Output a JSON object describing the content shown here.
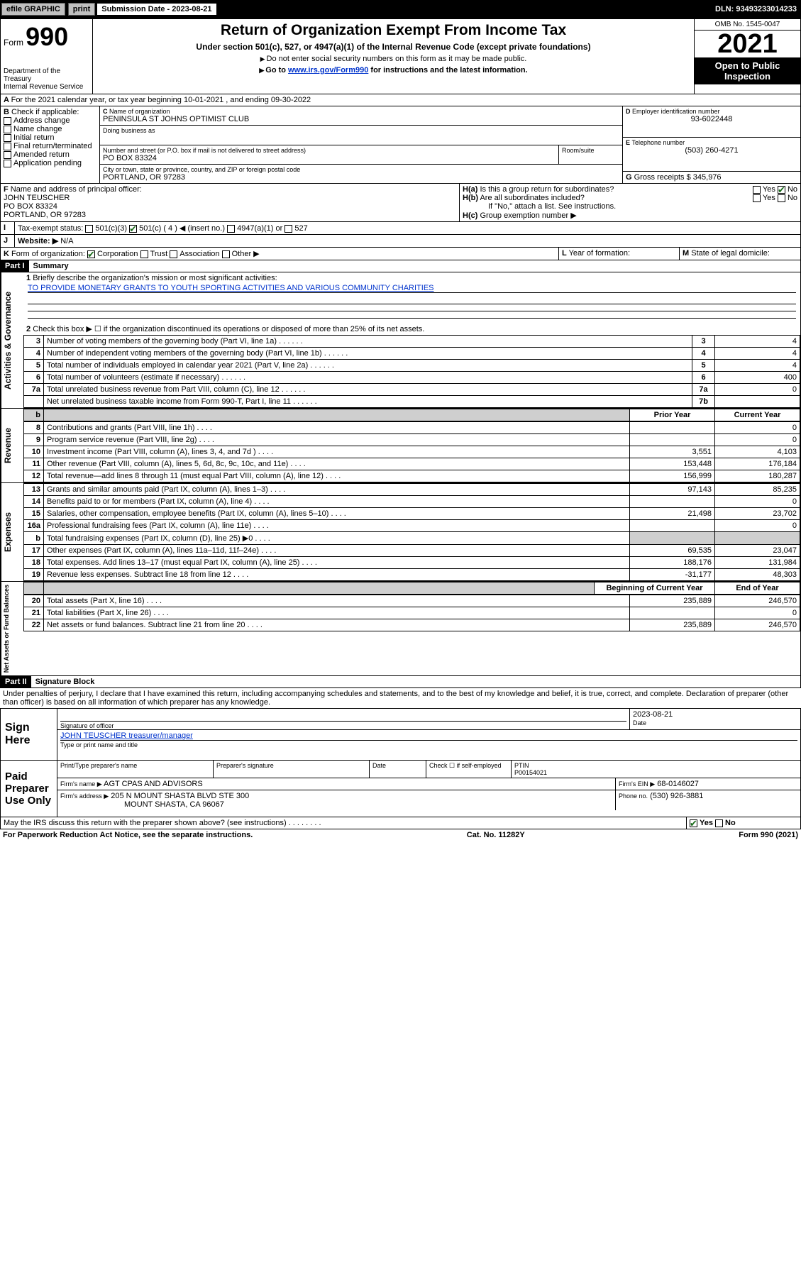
{
  "topbar": {
    "efile": "efile GRAPHIC",
    "print": "print",
    "sub_label": "Submission Date - 2023-08-21",
    "dln": "DLN: 93493233014233"
  },
  "hdr": {
    "form_small": "Form",
    "form_no": "990",
    "dept": "Department of the Treasury",
    "irs": "Internal Revenue Service",
    "title": "Return of Organization Exempt From Income Tax",
    "sub": "Under section 501(c), 527, or 4947(a)(1) of the Internal Revenue Code (except private foundations)",
    "note1": "Do not enter social security numbers on this form as it may be made public.",
    "note2_pre": "Go to ",
    "note2_link": "www.irs.gov/Form990",
    "note2_post": " for instructions and the latest information.",
    "omb": "OMB No. 1545-0047",
    "year": "2021",
    "inspect": "Open to Public Inspection"
  },
  "A": {
    "text": "For the 2021 calendar year, or tax year beginning 10-01-2021   , and ending 09-30-2022"
  },
  "B": {
    "label": "Check if applicable:",
    "items": [
      "Address change",
      "Name change",
      "Initial return",
      "Final return/terminated",
      "Amended return",
      "Application pending"
    ]
  },
  "C": {
    "name_label": "Name of organization",
    "name": "PENINSULA ST JOHNS OPTIMIST CLUB",
    "dba_label": "Doing business as",
    "addr_label": "Number and street (or P.O. box if mail is not delivered to street address)",
    "addr": "PO BOX 83324",
    "room_label": "Room/suite",
    "city_label": "City or town, state or province, country, and ZIP or foreign postal code",
    "city": "PORTLAND, OR  97283"
  },
  "D": {
    "label": "Employer identification number",
    "val": "93-6022448"
  },
  "E": {
    "label": "Telephone number",
    "val": "(503) 260-4271"
  },
  "G": {
    "label": "Gross receipts $",
    "val": "345,976"
  },
  "F": {
    "label": "Name and address of principal officer:",
    "name": "JOHN TEUSCHER",
    "addr1": "PO BOX 83324",
    "addr2": "PORTLAND, OR  97283"
  },
  "H": {
    "a": "Is this a group return for subordinates?",
    "b": "Are all subordinates included?",
    "b2": "If \"No,\" attach a list. See instructions.",
    "c": "Group exemption number ▶",
    "yes": "Yes",
    "no": "No"
  },
  "I": {
    "label": "Tax-exempt status:",
    "opts": [
      "501(c)(3)",
      "501(c) ( 4 ) ◀ (insert no.)",
      "4947(a)(1) or",
      "527"
    ]
  },
  "J": {
    "label": "Website: ▶",
    "val": "N/A"
  },
  "K": {
    "label": "Form of organization:",
    "opts": [
      "Corporation",
      "Trust",
      "Association",
      "Other ▶"
    ]
  },
  "L": {
    "label": "Year of formation:"
  },
  "M": {
    "label": "State of legal domicile:"
  },
  "part1": {
    "hdr": "Part I",
    "title": "Summary",
    "l1": "Briefly describe the organization's mission or most significant activities:",
    "l1v": "TO PROVIDE MONETARY GRANTS TO YOUTH SPORTING ACTIVITIES AND VARIOUS COMMUNITY CHARITIES",
    "l2": "Check this box ▶ ☐ if the organization discontinued its operations or disposed of more than 25% of its net assets.",
    "rows_gov": [
      {
        "n": "3",
        "t": "Number of voting members of the governing body (Part VI, line 1a)",
        "ln": "3",
        "v": "4"
      },
      {
        "n": "4",
        "t": "Number of independent voting members of the governing body (Part VI, line 1b)",
        "ln": "4",
        "v": "4"
      },
      {
        "n": "5",
        "t": "Total number of individuals employed in calendar year 2021 (Part V, line 2a)",
        "ln": "5",
        "v": "4"
      },
      {
        "n": "6",
        "t": "Total number of volunteers (estimate if necessary)",
        "ln": "6",
        "v": "400"
      },
      {
        "n": "7a",
        "t": "Total unrelated business revenue from Part VIII, column (C), line 12",
        "ln": "7a",
        "v": "0"
      },
      {
        "n": "",
        "t": "Net unrelated business taxable income from Form 990-T, Part I, line 11",
        "ln": "7b",
        "v": ""
      }
    ],
    "col_prior": "Prior Year",
    "col_curr": "Current Year",
    "rows_rev": [
      {
        "n": "8",
        "t": "Contributions and grants (Part VIII, line 1h)",
        "p": "",
        "c": "0"
      },
      {
        "n": "9",
        "t": "Program service revenue (Part VIII, line 2g)",
        "p": "",
        "c": "0"
      },
      {
        "n": "10",
        "t": "Investment income (Part VIII, column (A), lines 3, 4, and 7d )",
        "p": "3,551",
        "c": "4,103"
      },
      {
        "n": "11",
        "t": "Other revenue (Part VIII, column (A), lines 5, 6d, 8c, 9c, 10c, and 11e)",
        "p": "153,448",
        "c": "176,184"
      },
      {
        "n": "12",
        "t": "Total revenue—add lines 8 through 11 (must equal Part VIII, column (A), line 12)",
        "p": "156,999",
        "c": "180,287"
      }
    ],
    "rows_exp": [
      {
        "n": "13",
        "t": "Grants and similar amounts paid (Part IX, column (A), lines 1–3)",
        "p": "97,143",
        "c": "85,235"
      },
      {
        "n": "14",
        "t": "Benefits paid to or for members (Part IX, column (A), line 4)",
        "p": "",
        "c": "0"
      },
      {
        "n": "15",
        "t": "Salaries, other compensation, employee benefits (Part IX, column (A), lines 5–10)",
        "p": "21,498",
        "c": "23,702"
      },
      {
        "n": "16a",
        "t": "Professional fundraising fees (Part IX, column (A), line 11e)",
        "p": "",
        "c": "0"
      },
      {
        "n": "b",
        "t": "Total fundraising expenses (Part IX, column (D), line 25) ▶0",
        "p": "—shade—",
        "c": "—shade—"
      },
      {
        "n": "17",
        "t": "Other expenses (Part IX, column (A), lines 11a–11d, 11f–24e)",
        "p": "69,535",
        "c": "23,047"
      },
      {
        "n": "18",
        "t": "Total expenses. Add lines 13–17 (must equal Part IX, column (A), line 25)",
        "p": "188,176",
        "c": "131,984"
      },
      {
        "n": "19",
        "t": "Revenue less expenses. Subtract line 18 from line 12",
        "p": "-31,177",
        "c": "48,303"
      }
    ],
    "col_beg": "Beginning of Current Year",
    "col_end": "End of Year",
    "rows_net": [
      {
        "n": "20",
        "t": "Total assets (Part X, line 16)",
        "p": "235,889",
        "c": "246,570"
      },
      {
        "n": "21",
        "t": "Total liabilities (Part X, line 26)",
        "p": "",
        "c": "0"
      },
      {
        "n": "22",
        "t": "Net assets or fund balances. Subtract line 21 from line 20",
        "p": "235,889",
        "c": "246,570"
      }
    ],
    "vlabels": {
      "gov": "Activities & Governance",
      "rev": "Revenue",
      "exp": "Expenses",
      "net": "Net Assets or Fund Balances"
    }
  },
  "part2": {
    "hdr": "Part II",
    "title": "Signature Block",
    "decl": "Under penalties of perjury, I declare that I have examined this return, including accompanying schedules and statements, and to the best of my knowledge and belief, it is true, correct, and complete. Declaration of preparer (other than officer) is based on all information of which preparer has any knowledge.",
    "sign_here": "Sign Here",
    "sig_officer": "Signature of officer",
    "sig_date": "Date",
    "sig_date_v": "2023-08-21",
    "sig_name": "JOHN TEUSCHER  treasurer/manager",
    "sig_name_lbl": "Type or print name and title",
    "paid": "Paid Preparer Use Only",
    "pp_name": "Print/Type preparer's name",
    "pp_sig": "Preparer's signature",
    "pp_date": "Date",
    "pp_check": "Check ☐ if self-employed",
    "pp_ptin_l": "PTIN",
    "pp_ptin": "P00154021",
    "firm_name_l": "Firm's name   ▶",
    "firm_name": "AGT CPAS AND ADVISORS",
    "firm_ein_l": "Firm's EIN ▶",
    "firm_ein": "68-0146027",
    "firm_addr_l": "Firm's address ▶",
    "firm_addr1": "205 N MOUNT SHASTA BLVD STE 300",
    "firm_addr2": "MOUNT SHASTA, CA  96067",
    "phone_l": "Phone no.",
    "phone": "(530) 926-3881",
    "discuss": "May the IRS discuss this return with the preparer shown above? (see instructions)"
  },
  "footer": {
    "pra": "For Paperwork Reduction Act Notice, see the separate instructions.",
    "cat": "Cat. No. 11282Y",
    "form": "Form 990 (2021)"
  }
}
